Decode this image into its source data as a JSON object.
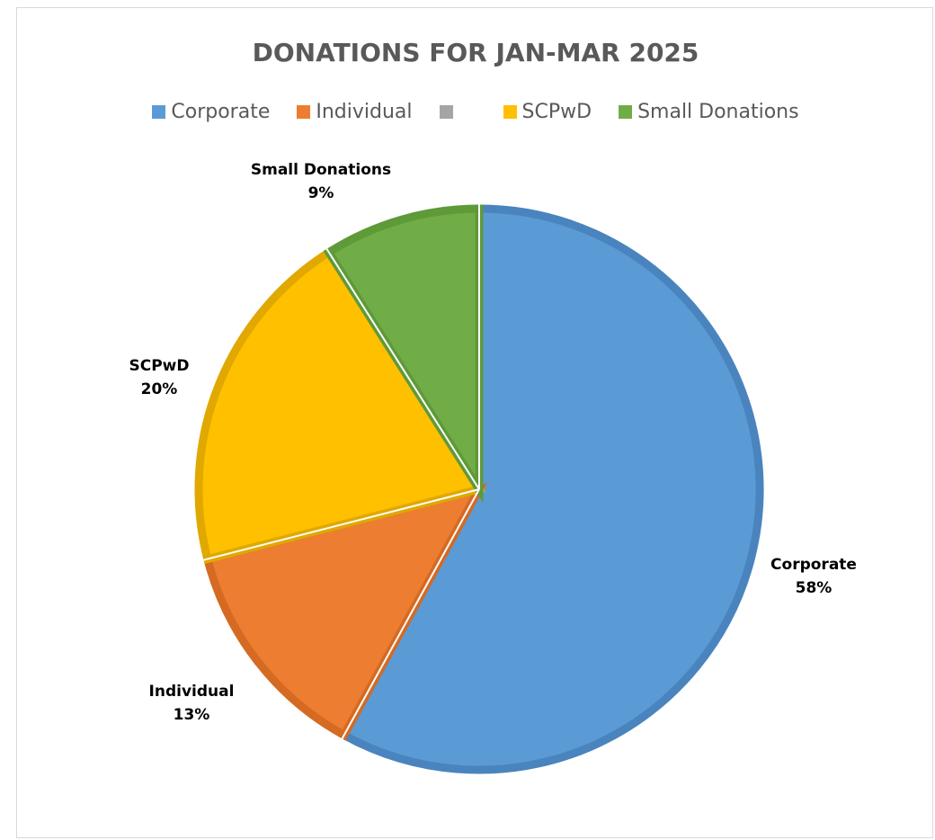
{
  "chart_data": {
    "type": "pie",
    "title": "DONATIONS FOR JAN-MAR 2025",
    "legend_position": "top",
    "slices": [
      {
        "name": "Corporate",
        "percent": 58,
        "label": "Corporate",
        "value_label": "58%",
        "color": "#5B9BD5",
        "border": "#4A84BE"
      },
      {
        "name": "Individual",
        "percent": 13,
        "label": "Individual",
        "value_label": "13%",
        "color": "#ED7D31",
        "border": "#D56A22"
      },
      {
        "name": "",
        "percent": 0,
        "label": "",
        "value_label": "",
        "color": "#A5A5A5",
        "border": "#A5A5A5"
      },
      {
        "name": "SCPwD",
        "percent": 20,
        "label": "SCPwD",
        "value_label": "20%",
        "color": "#FFC000",
        "border": "#E0A800"
      },
      {
        "name": "Small Donations",
        "percent": 9,
        "label": "Small Donations",
        "value_label": "9%",
        "color": "#70AD47",
        "border": "#5E9A38"
      }
    ]
  }
}
